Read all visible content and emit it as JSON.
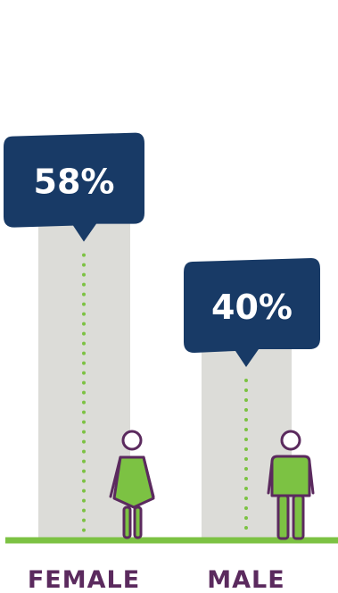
{
  "chart_data": {
    "type": "bar",
    "categories": [
      "FEMALE",
      "MALE"
    ],
    "values": [
      58,
      40
    ],
    "value_labels": [
      "58%",
      "40%"
    ],
    "ylim": [
      0,
      75
    ],
    "grid": false,
    "legend": "none"
  },
  "colors": {
    "bar": "#dcdcd8",
    "bubble": "#183a66",
    "dots": "#7cc243",
    "baseline": "#7cc243",
    "figure_fill": "#7cc243",
    "figure_outline": "#5b2a5e",
    "label": "#5b2a5e"
  },
  "icons": [
    "female-figure-icon",
    "male-figure-icon"
  ]
}
